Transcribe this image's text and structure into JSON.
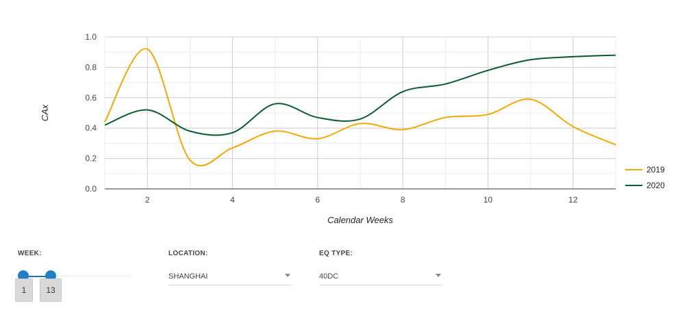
{
  "chart_data": {
    "type": "line",
    "xlabel": "Calendar Weeks",
    "ylabel": "CAx",
    "xlim": [
      1,
      13
    ],
    "ylim": [
      0,
      1.0
    ],
    "x_ticks": [
      2,
      4,
      6,
      8,
      10,
      12
    ],
    "y_ticks": [
      0.0,
      0.2,
      0.4,
      0.6,
      0.8,
      1.0
    ],
    "y_tick_labels": [
      "0.0",
      "0.2",
      "0.4",
      "0.6",
      "0.8",
      "1.0"
    ],
    "legend_position": "right",
    "series": [
      {
        "name": "2019",
        "color": "#f5a800",
        "x": [
          1,
          2,
          3,
          4,
          5,
          6,
          7,
          8,
          9,
          10,
          11,
          12,
          13
        ],
        "y": [
          0.44,
          0.92,
          0.19,
          0.27,
          0.38,
          0.33,
          0.43,
          0.39,
          0.47,
          0.49,
          0.59,
          0.41,
          0.29
        ]
      },
      {
        "name": "2020",
        "color": "#0a5a2e",
        "x": [
          1,
          2,
          3,
          4,
          5,
          6,
          7,
          8,
          9,
          10,
          11,
          12,
          13
        ],
        "y": [
          0.42,
          0.52,
          0.38,
          0.37,
          0.56,
          0.47,
          0.46,
          0.64,
          0.69,
          0.78,
          0.85,
          0.87,
          0.88
        ]
      }
    ]
  },
  "controls": {
    "week": {
      "label": "WEEK:",
      "min_value": "1",
      "max_value": "13"
    },
    "location": {
      "label": "LOCATION:",
      "value": "SHANGHAI"
    },
    "eq_type": {
      "label": "EQ TYPE:",
      "value": "40DC"
    }
  }
}
